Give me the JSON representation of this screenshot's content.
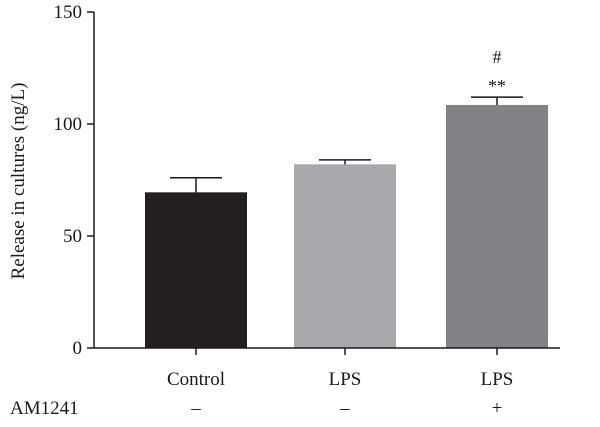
{
  "chart_data": {
    "type": "bar",
    "title": "",
    "xlabel": "",
    "ylabel": "Release in cultures (ng/L)",
    "ylim": [
      0,
      150
    ],
    "yticks": [
      0,
      50,
      100,
      150
    ],
    "grid": false,
    "categories": [
      "Control",
      "LPS",
      "LPS"
    ],
    "values": [
      69.5,
      82,
      108.5
    ],
    "errors": [
      6.5,
      2,
      3.5
    ],
    "bar_colors": [
      "#231f20",
      "#a7a9ac",
      "#808285"
    ],
    "significance": [
      "",
      "",
      "**"
    ],
    "significance_secondary": [
      "",
      "",
      "#"
    ],
    "row_label": "AM1241",
    "row_values": [
      "–",
      "–",
      "+"
    ]
  }
}
